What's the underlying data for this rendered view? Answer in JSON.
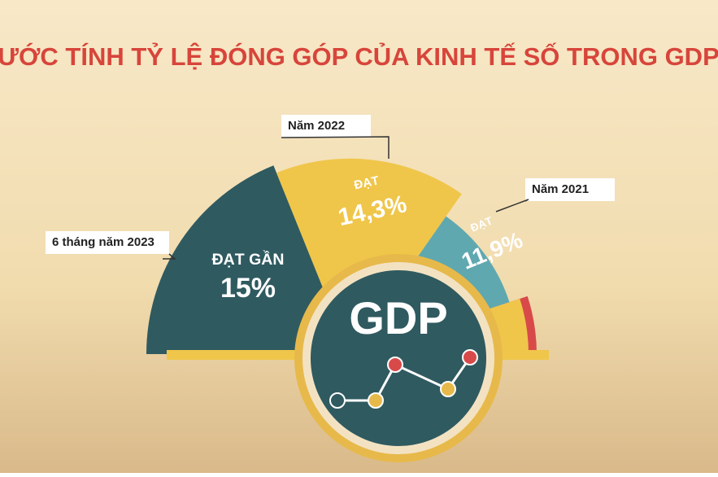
{
  "chart_data": {
    "type": "polar-area",
    "title": "ƯỚC TÍNH TỶ LỆ ĐÓNG GÓP CỦA KINH TẾ SỐ TRONG GDP",
    "categories": [
      "6 tháng năm 2023",
      "Năm 2022",
      "Năm 2021"
    ],
    "values": [
      15,
      14.3,
      11.9
    ],
    "value_labels": [
      "15%",
      "14,3%",
      "11,9%"
    ],
    "annotations": [
      "ĐẠT GẦN",
      "ĐẠT",
      "ĐẠT"
    ],
    "colors": [
      "#2f5a60",
      "#efc64a",
      "#5fa8b0"
    ],
    "center_label": "GDP"
  }
}
